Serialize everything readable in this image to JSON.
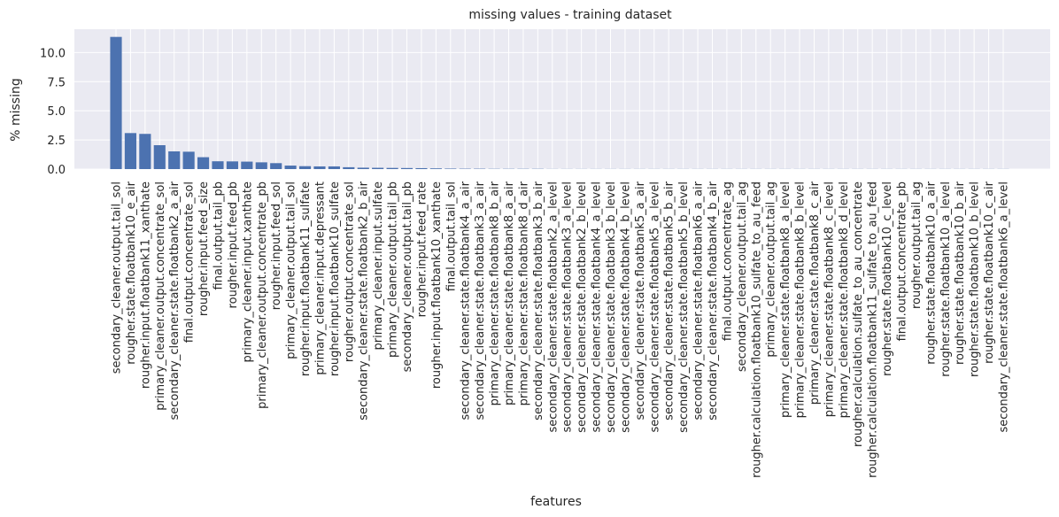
{
  "chart_data": {
    "type": "bar",
    "title": "missing values - training dataset",
    "xlabel": "features",
    "ylabel": "% missing",
    "ylim": [
      0,
      12
    ],
    "yticks": [
      0.0,
      2.5,
      5.0,
      7.5,
      10.0
    ],
    "ytick_labels": [
      "0.0",
      "2.5",
      "5.0",
      "7.5",
      "10.0"
    ],
    "grid": true,
    "colors": {
      "bar": "#4c72b0",
      "plot_bg": "#eaeaf2",
      "grid": "#ffffff",
      "text": "#262626"
    },
    "categories": [
      "secondary_cleaner.output.tail_sol",
      "rougher.state.floatbank10_e_air",
      "rougher.input.floatbank11_xanthate",
      "primary_cleaner.output.concentrate_sol",
      "secondary_cleaner.state.floatbank2_a_air",
      "final.output.concentrate_sol",
      "rougher.input.feed_size",
      "final.output.tail_pb",
      "rougher.input.feed_pb",
      "primary_cleaner.input.xanthate",
      "primary_cleaner.output.concentrate_pb",
      "rougher.input.feed_sol",
      "primary_cleaner.output.tail_sol",
      "rougher.input.floatbank11_sulfate",
      "primary_cleaner.input.depressant",
      "rougher.input.floatbank10_sulfate",
      "rougher.output.concentrate_sol",
      "secondary_cleaner.state.floatbank2_b_air",
      "primary_cleaner.input.sulfate",
      "primary_cleaner.output.tail_pb",
      "secondary_cleaner.output.tail_pb",
      "rougher.input.feed_rate",
      "rougher.input.floatbank10_xanthate",
      "final.output.tail_sol",
      "secondary_cleaner.state.floatbank4_a_air",
      "secondary_cleaner.state.floatbank3_a_air",
      "primary_cleaner.state.floatbank8_b_air",
      "primary_cleaner.state.floatbank8_a_air",
      "primary_cleaner.state.floatbank8_d_air",
      "secondary_cleaner.state.floatbank3_b_air",
      "secondary_cleaner.state.floatbank2_a_level",
      "secondary_cleaner.state.floatbank3_a_level",
      "secondary_cleaner.state.floatbank2_b_level",
      "secondary_cleaner.state.floatbank4_a_level",
      "secondary_cleaner.state.floatbank3_b_level",
      "secondary_cleaner.state.floatbank4_b_level",
      "secondary_cleaner.state.floatbank5_a_air",
      "secondary_cleaner.state.floatbank5_a_level",
      "secondary_cleaner.state.floatbank5_b_air",
      "secondary_cleaner.state.floatbank5_b_level",
      "secondary_cleaner.state.floatbank6_a_air",
      "secondary_cleaner.state.floatbank4_b_air",
      "final.output.concentrate_ag",
      "secondary_cleaner.output.tail_ag",
      "rougher.calculation.floatbank10_sulfate_to_au_feed",
      "primary_cleaner.output.tail_ag",
      "primary_cleaner.state.floatbank8_a_level",
      "primary_cleaner.state.floatbank8_b_level",
      "primary_cleaner.state.floatbank8_c_air",
      "primary_cleaner.state.floatbank8_c_level",
      "primary_cleaner.state.floatbank8_d_level",
      "rougher.calculation.sulfate_to_au_concentrate",
      "rougher.calculation.floatbank11_sulfate_to_au_feed",
      "rougher.state.floatbank10_c_level",
      "final.output.concentrate_pb",
      "rougher.output.tail_ag",
      "rougher.state.floatbank10_a_air",
      "rougher.state.floatbank10_a_level",
      "rougher.state.floatbank10_b_air",
      "rougher.state.floatbank10_b_level",
      "rougher.state.floatbank10_c_air",
      "secondary_cleaner.state.floatbank6_a_level"
    ],
    "values": [
      11.34,
      3.09,
      3.02,
      2.05,
      1.52,
      1.49,
      1.02,
      0.67,
      0.66,
      0.64,
      0.58,
      0.51,
      0.3,
      0.25,
      0.23,
      0.23,
      0.16,
      0.12,
      0.11,
      0.1,
      0.09,
      0.08,
      0.06,
      0.04,
      0.03,
      0.03,
      0.02,
      0.02,
      0.02,
      0.02,
      0.01,
      0.01,
      0.01,
      0.01,
      0.01,
      0.01,
      0.01,
      0.01,
      0.01,
      0.01,
      0.01,
      0.01,
      0.01,
      0.01,
      0.01,
      0.01,
      0.01,
      0.01,
      0.01,
      0.01,
      0.01,
      0.01,
      0.01,
      0.01,
      0.01,
      0.01,
      0.01,
      0.01,
      0.01,
      0.01,
      0.01,
      0.01
    ]
  }
}
